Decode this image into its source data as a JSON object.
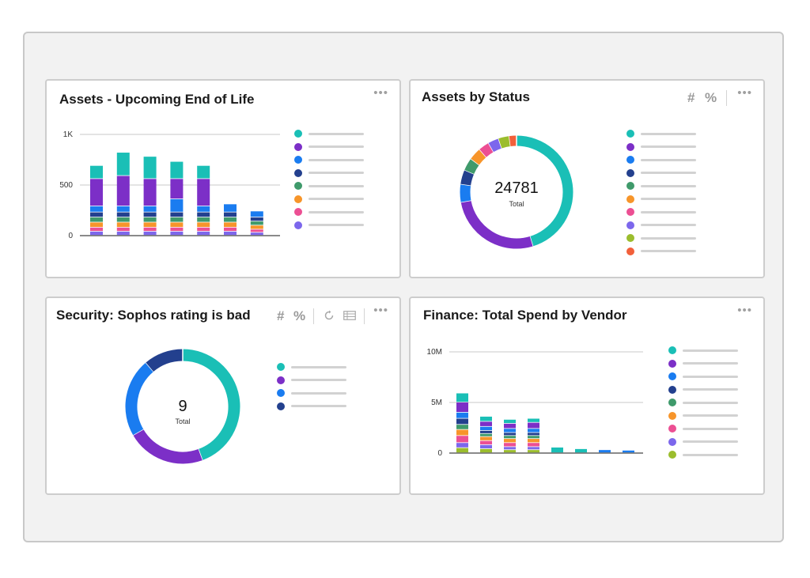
{
  "colors": {
    "teal": "#1abfb6",
    "purple": "#7c2fc7",
    "blue": "#1a7cf0",
    "navy": "#23408e",
    "green": "#3f9a6b",
    "orange": "#f7952a",
    "pink": "#ec4f93",
    "violet": "#7c67ec",
    "lime": "#9bbd2d",
    "red": "#f2603a"
  },
  "cards": {
    "eol": {
      "title": "Assets - Upcoming End of Life",
      "more": "•••",
      "legend": [
        "teal",
        "purple",
        "blue",
        "navy",
        "green",
        "orange",
        "pink",
        "violet"
      ]
    },
    "status": {
      "title": "Assets by Status",
      "hash": "#",
      "pct": "%",
      "more": "•••",
      "total": "24781",
      "total_label": "Total",
      "legend": [
        "teal",
        "purple",
        "blue",
        "navy",
        "green",
        "orange",
        "pink",
        "violet",
        "lime",
        "red"
      ]
    },
    "security": {
      "title": "Security: Sophos rating is bad",
      "hash": "#",
      "pct": "%",
      "refresh_icon": "refresh-icon",
      "table_icon": "table-icon",
      "more": "•••",
      "total": "9",
      "total_label": "Total",
      "legend": [
        "teal",
        "purple",
        "blue",
        "navy"
      ]
    },
    "finance": {
      "title": "Finance: Total Spend by Vendor",
      "more": "•••",
      "legend": [
        "teal",
        "purple",
        "blue",
        "navy",
        "green",
        "orange",
        "pink",
        "violet",
        "lime"
      ]
    }
  },
  "chart_data": [
    {
      "id": "eol",
      "type": "bar",
      "stacked": true,
      "yticks": [
        "0",
        "500",
        "1K"
      ],
      "ylim": [
        0,
        1000
      ],
      "series_colors": [
        "violet",
        "pink",
        "orange",
        "green",
        "navy",
        "blue",
        "purple",
        "teal"
      ],
      "stacks": [
        [
          40,
          40,
          50,
          50,
          50,
          60,
          270,
          130
        ],
        [
          40,
          40,
          50,
          50,
          50,
          60,
          300,
          230
        ],
        [
          40,
          40,
          50,
          50,
          50,
          60,
          270,
          220
        ],
        [
          40,
          40,
          50,
          50,
          50,
          130,
          200,
          170
        ],
        [
          40,
          40,
          50,
          50,
          50,
          60,
          270,
          130
        ],
        [
          40,
          40,
          50,
          50,
          50,
          80,
          0,
          0
        ],
        [
          30,
          30,
          40,
          40,
          40,
          60,
          0,
          0
        ]
      ]
    },
    {
      "id": "status",
      "type": "pie",
      "donut": true,
      "slice_colors": [
        "teal",
        "purple",
        "blue",
        "navy",
        "green",
        "orange",
        "pink",
        "violet",
        "lime",
        "red"
      ],
      "fractions": [
        0.44,
        0.26,
        0.05,
        0.04,
        0.035,
        0.035,
        0.03,
        0.03,
        0.03,
        0.02
      ]
    },
    {
      "id": "security",
      "type": "pie",
      "donut": true,
      "slice_colors": [
        "teal",
        "purple",
        "blue",
        "navy"
      ],
      "values": [
        4,
        2,
        2,
        1
      ]
    },
    {
      "id": "finance",
      "type": "bar",
      "stacked": true,
      "yticks": [
        "0",
        "5M",
        "10M"
      ],
      "ylim": [
        0,
        10
      ],
      "series_colors": [
        "lime",
        "violet",
        "pink",
        "orange",
        "green",
        "navy",
        "blue",
        "purple",
        "teal"
      ],
      "stacks": [
        [
          0.5,
          0.5,
          0.7,
          0.6,
          0.5,
          0.6,
          0.6,
          1.0,
          0.9
        ],
        [
          0.4,
          0.4,
          0.4,
          0.4,
          0.3,
          0.3,
          0.4,
          0.5,
          0.5
        ],
        [
          0.3,
          0.3,
          0.4,
          0.4,
          0.3,
          0.3,
          0.4,
          0.5,
          0.4
        ],
        [
          0.3,
          0.3,
          0.4,
          0.4,
          0.3,
          0.3,
          0.4,
          0.6,
          0.4
        ],
        [
          0,
          0,
          0,
          0,
          0,
          0,
          0,
          0,
          0.55
        ],
        [
          0,
          0,
          0,
          0,
          0,
          0,
          0,
          0,
          0.4
        ],
        [
          0,
          0,
          0,
          0,
          0,
          0,
          0.3,
          0,
          0
        ],
        [
          0,
          0,
          0,
          0,
          0,
          0,
          0.25,
          0,
          0
        ]
      ]
    }
  ]
}
